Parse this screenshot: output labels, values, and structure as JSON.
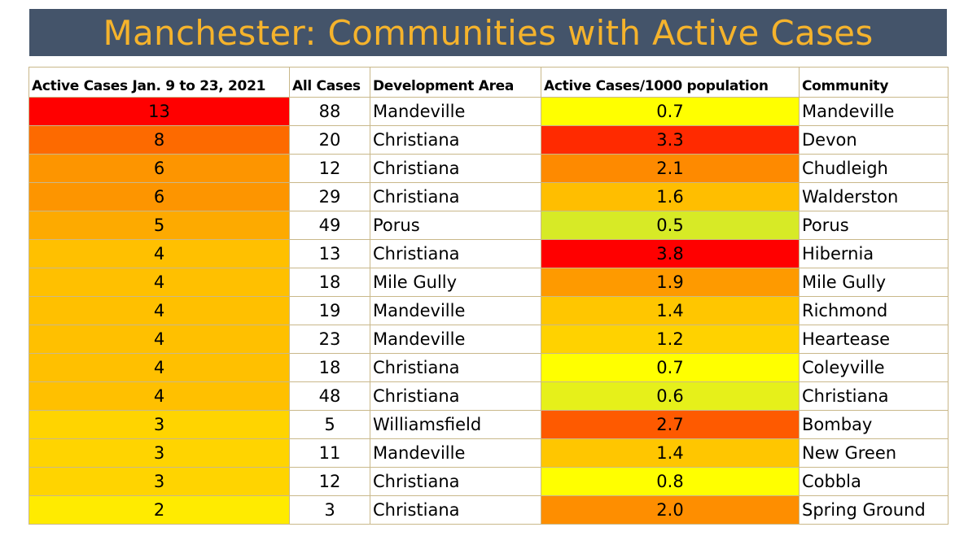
{
  "title": "Manchester: Communities with Active Cases",
  "colors": {
    "title_bar": "#44546a",
    "title_text": "#f5b32c"
  },
  "headers": {
    "active": "Active Cases Jan. 9 to 23, 2021",
    "all": "All Cases",
    "area": "Development Area",
    "rate": "Active Cases/1000 population",
    "community": "Community"
  },
  "rows": [
    {
      "active": "13",
      "all": "88",
      "area": "Mandeville",
      "rate": "0.7",
      "community": "Mandeville",
      "active_color": "#ff0000",
      "rate_color": "#ffff00"
    },
    {
      "active": "8",
      "all": "20",
      "area": "Christiana",
      "rate": "3.3",
      "community": "Devon",
      "active_color": "#fd6a00",
      "rate_color": "#ff2a00"
    },
    {
      "active": "6",
      "all": "12",
      "area": "Christiana",
      "rate": "2.1",
      "community": "Chudleigh",
      "active_color": "#fd9500",
      "rate_color": "#fe8a00"
    },
    {
      "active": "6",
      "all": "29",
      "area": "Christiana",
      "rate": "1.6",
      "community": "Walderston",
      "active_color": "#fd9500",
      "rate_color": "#ffbe00"
    },
    {
      "active": "5",
      "all": "49",
      "area": "Porus",
      "rate": "0.5",
      "community": "Porus",
      "active_color": "#fdaa00",
      "rate_color": "#d7ea26"
    },
    {
      "active": "4",
      "all": "13",
      "area": "Christiana",
      "rate": "3.8",
      "community": "Hibernia",
      "active_color": "#ffc000",
      "rate_color": "#ff0000"
    },
    {
      "active": "4",
      "all": "18",
      "area": "Mile Gully",
      "rate": "1.9",
      "community": "Mile Gully",
      "active_color": "#ffc000",
      "rate_color": "#fe9a00"
    },
    {
      "active": "4",
      "all": "19",
      "area": "Mandeville",
      "rate": "1.4",
      "community": "Richmond",
      "active_color": "#ffc000",
      "rate_color": "#ffc600"
    },
    {
      "active": "4",
      "all": "23",
      "area": "Mandeville",
      "rate": "1.2",
      "community": "Heartease",
      "active_color": "#ffc000",
      "rate_color": "#ffd200"
    },
    {
      "active": "4",
      "all": "18",
      "area": "Christiana",
      "rate": "0.7",
      "community": "Coleyville",
      "active_color": "#ffc000",
      "rate_color": "#ffff00"
    },
    {
      "active": "4",
      "all": "48",
      "area": "Christiana",
      "rate": "0.6",
      "community": "Christiana",
      "active_color": "#ffc000",
      "rate_color": "#e6f01a"
    },
    {
      "active": "3",
      "all": "5",
      "area": "Williamsfield",
      "rate": "2.7",
      "community": "Bombay",
      "active_color": "#ffd400",
      "rate_color": "#fe5a00"
    },
    {
      "active": "3",
      "all": "11",
      "area": "Mandeville",
      "rate": "1.4",
      "community": "New Green",
      "active_color": "#ffd400",
      "rate_color": "#ffc600"
    },
    {
      "active": "3",
      "all": "12",
      "area": "Christiana",
      "rate": "0.8",
      "community": "Cobbla",
      "active_color": "#ffd400",
      "rate_color": "#ffff00"
    },
    {
      "active": "2",
      "all": "3",
      "area": "Christiana",
      "rate": "2.0",
      "community": "Spring Ground",
      "active_color": "#ffeb00",
      "rate_color": "#fe8e00"
    }
  ]
}
